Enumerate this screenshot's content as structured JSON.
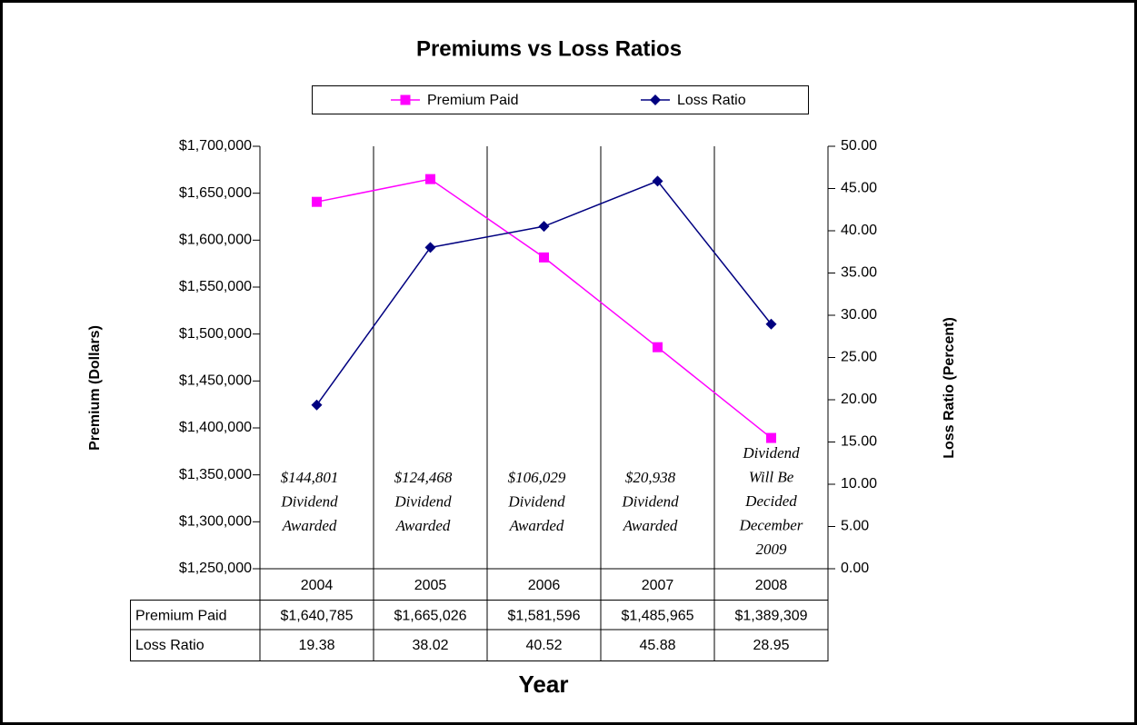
{
  "chart_data": {
    "type": "line",
    "title": "Premiums vs Loss Ratios",
    "x_label": "Year",
    "y_label": "Premium (Dollars)",
    "y2_label": "Loss Ratio (Percent)",
    "categories": [
      "2004",
      "2005",
      "2006",
      "2007",
      "2008"
    ],
    "series": [
      {
        "name": "Premium Paid",
        "color": "#ff00ff",
        "marker": "square",
        "values": [
          1640785,
          1665026,
          1581596,
          1485965,
          1389309
        ],
        "value_labels": [
          "$1,640,785",
          "$1,665,026",
          "$1,581,596",
          "$1,485,965",
          "$1,389,309"
        ]
      },
      {
        "name": "Loss Ratio",
        "color": "#000080",
        "marker": "diamond",
        "axis": "y2",
        "values": [
          19.38,
          38.02,
          40.52,
          45.88,
          28.95
        ]
      }
    ],
    "annotations": [
      [
        "$144,801",
        "Dividend",
        "Awarded"
      ],
      [
        "$124,468",
        "Dividend",
        "Awarded"
      ],
      [
        "$106,029",
        "Dividend",
        "Awarded"
      ],
      [
        "$20,938",
        "Dividend",
        "Awarded"
      ],
      [
        "Dividend",
        "Will Be",
        "Decided",
        "December",
        "2009"
      ]
    ],
    "ylim": [
      1250000,
      1700000
    ],
    "yticks": [
      {
        "value": 1250000,
        "label": "$1,250,000"
      },
      {
        "value": 1300000,
        "label": "$1,300,000"
      },
      {
        "value": 1350000,
        "label": "$1,350,000"
      },
      {
        "value": 1400000,
        "label": "$1,400,000"
      },
      {
        "value": 1450000,
        "label": "$1,450,000"
      },
      {
        "value": 1500000,
        "label": "$1,500,000"
      },
      {
        "value": 1550000,
        "label": "$1,550,000"
      },
      {
        "value": 1600000,
        "label": "$1,600,000"
      },
      {
        "value": 1650000,
        "label": "$1,650,000"
      },
      {
        "value": 1700000,
        "label": "$1,700,000"
      }
    ],
    "y2lim": [
      0,
      50
    ],
    "y2ticks": [
      {
        "value": 0,
        "label": "0.00"
      },
      {
        "value": 5,
        "label": "5.00"
      },
      {
        "value": 10,
        "label": "10.00"
      },
      {
        "value": 15,
        "label": "15.00"
      },
      {
        "value": 20,
        "label": "20.00"
      },
      {
        "value": 25,
        "label": "25.00"
      },
      {
        "value": 30,
        "label": "30.00"
      },
      {
        "value": 35,
        "label": "35.00"
      },
      {
        "value": 40,
        "label": "40.00"
      },
      {
        "value": 45,
        "label": "45.00"
      },
      {
        "value": 50,
        "label": "50.00"
      }
    ],
    "legend": "top",
    "data_table": true
  }
}
